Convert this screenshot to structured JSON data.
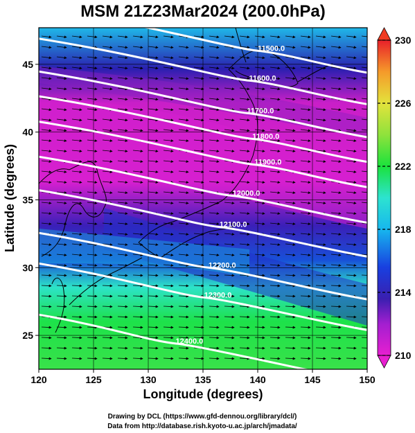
{
  "figure": {
    "title": "MSM 21Z23Mar2024 (200.0hPa)",
    "xlabel": "Longitude (degrees)",
    "ylabel": "Latitude  (degrees)",
    "credit_line1": "Drawing by DCL (https://www.gfd-dennou.org/library/dcl/)",
    "credit_line2": "Data from http://database.rish.kyoto-u.ac.jp/arch/jmadata/"
  },
  "map": {
    "lon_range": [
      120,
      150
    ],
    "lat_range": [
      22.5,
      47.7
    ],
    "x_ticks": [
      120,
      125,
      130,
      135,
      140,
      145,
      150
    ],
    "y_ticks": [
      25,
      30,
      35,
      40,
      45
    ],
    "x_tick_labels": [
      "120",
      "125",
      "130",
      "135",
      "140",
      "145",
      "150"
    ],
    "y_tick_labels": [
      "25",
      "30",
      "35",
      "40",
      "45"
    ]
  },
  "colorbar": {
    "min": 210,
    "max": 230,
    "tick_values": [
      210,
      214,
      218,
      222,
      226,
      230
    ],
    "tick_labels": [
      "210",
      "214",
      "218",
      "222",
      "226",
      "230"
    ],
    "colors": [
      "#e71fd0",
      "#b23fd6",
      "#6a1fb8",
      "#2a1fb0",
      "#1840e0",
      "#17b7ee",
      "#2de3d0",
      "#1be23c",
      "#8fe23c",
      "#e3e33c",
      "#f59a2a",
      "#f03c22",
      "#e8202a"
    ]
  },
  "contours": [
    {
      "label": "11500.0",
      "lon": 140.0,
      "lat": 46.0
    },
    {
      "label": "11600.0",
      "lon": 139.2,
      "lat": 43.8
    },
    {
      "label": "11700.0",
      "lon": 139.0,
      "lat": 41.4
    },
    {
      "label": "11800.0",
      "lon": 139.5,
      "lat": 39.5
    },
    {
      "label": "11900.0",
      "lon": 139.7,
      "lat": 37.6
    },
    {
      "label": "12000.0",
      "lon": 137.7,
      "lat": 35.3
    },
    {
      "label": "12100.0",
      "lon": 136.5,
      "lat": 33.0
    },
    {
      "label": "12200.0",
      "lon": 135.5,
      "lat": 30.0
    },
    {
      "label": "12300.0",
      "lon": 135.1,
      "lat": 27.8
    },
    {
      "label": "12400.0",
      "lon": 132.5,
      "lat": 24.4
    }
  ]
}
